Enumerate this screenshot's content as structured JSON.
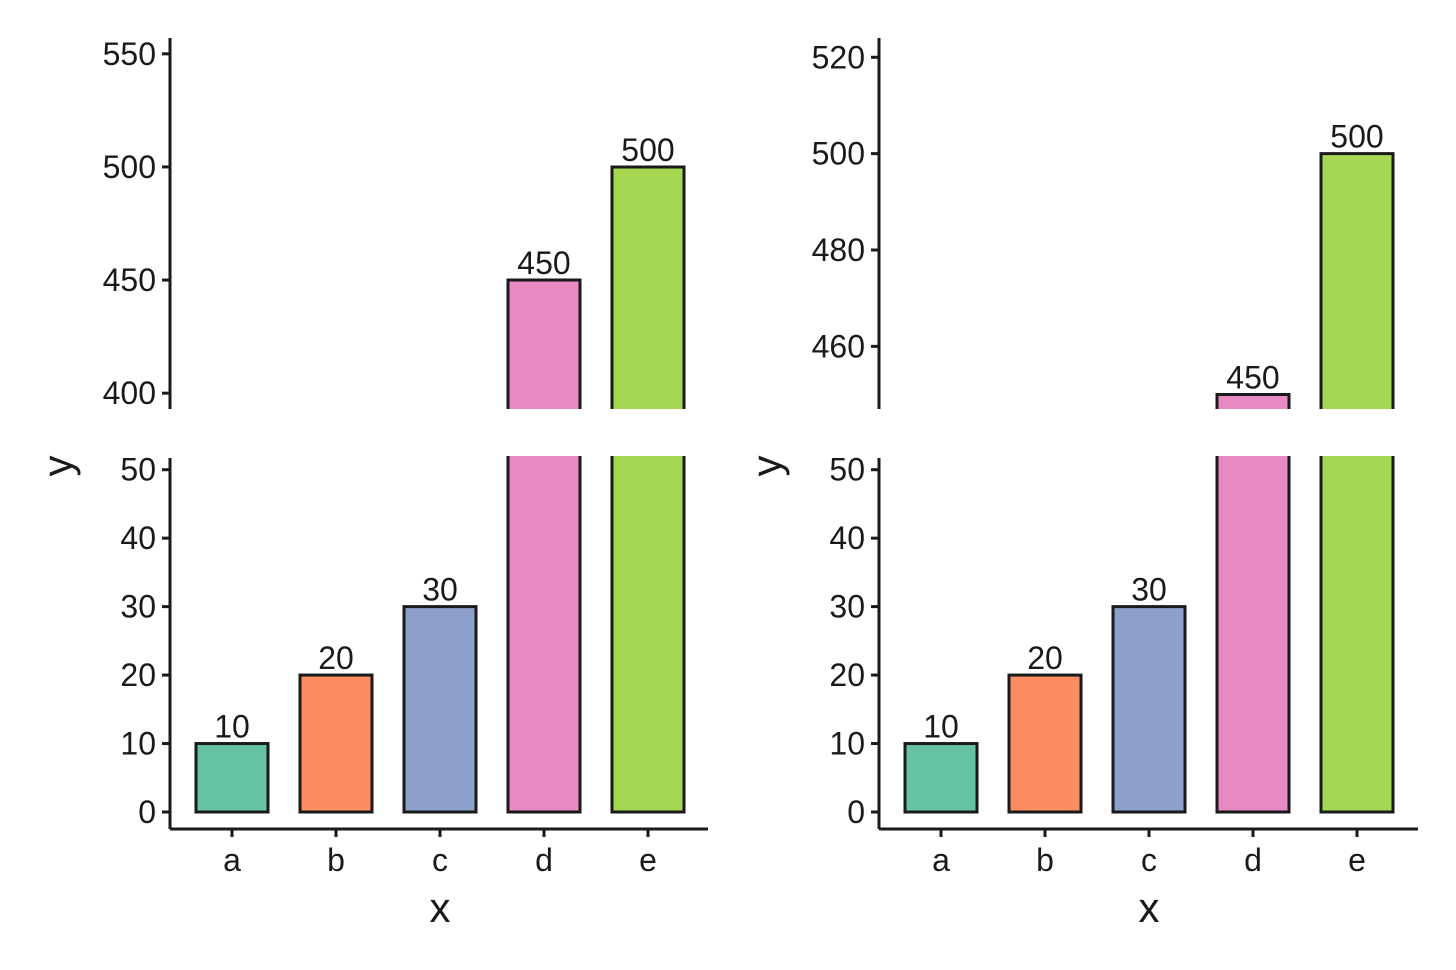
{
  "chart_data": [
    {
      "type": "bar",
      "layout": "broken-y-axis",
      "categories": [
        "a",
        "b",
        "c",
        "d",
        "e"
      ],
      "values": [
        10,
        20,
        30,
        450,
        500
      ],
      "data_labels": [
        "10",
        "20",
        "30",
        "450",
        "500"
      ],
      "colors": [
        "#66c2a5",
        "#fc8d62",
        "#8da0cb",
        "#e78ac3",
        "#a6d854"
      ],
      "xlabel": "x",
      "ylabel": "y",
      "segments": {
        "lower": {
          "ylim": [
            0,
            52
          ],
          "ticks": [
            0,
            10,
            20,
            30,
            40,
            50
          ],
          "tick_labels": [
            "0",
            "10",
            "20",
            "30",
            "40",
            "50"
          ]
        },
        "upper": {
          "ylim": [
            393,
            557
          ],
          "ticks": [
            400,
            450,
            500,
            550
          ],
          "tick_labels": [
            "400",
            "450",
            "500",
            "550"
          ]
        }
      },
      "grid": false,
      "legend": "none"
    },
    {
      "type": "bar",
      "layout": "broken-y-axis",
      "categories": [
        "a",
        "b",
        "c",
        "d",
        "e"
      ],
      "values": [
        10,
        20,
        30,
        450,
        500
      ],
      "data_labels": [
        "10",
        "20",
        "30",
        "450",
        "500"
      ],
      "colors": [
        "#66c2a5",
        "#fc8d62",
        "#8da0cb",
        "#e78ac3",
        "#a6d854"
      ],
      "xlabel": "x",
      "ylabel": "y",
      "segments": {
        "lower": {
          "ylim": [
            0,
            52
          ],
          "ticks": [
            0,
            10,
            20,
            30,
            40,
            50
          ],
          "tick_labels": [
            "0",
            "10",
            "20",
            "30",
            "40",
            "50"
          ]
        },
        "upper": {
          "ylim": [
            447,
            524
          ],
          "ticks": [
            460,
            480,
            500,
            520
          ],
          "tick_labels": [
            "460",
            "480",
            "500",
            "520"
          ]
        }
      },
      "grid": false,
      "legend": "none"
    }
  ]
}
